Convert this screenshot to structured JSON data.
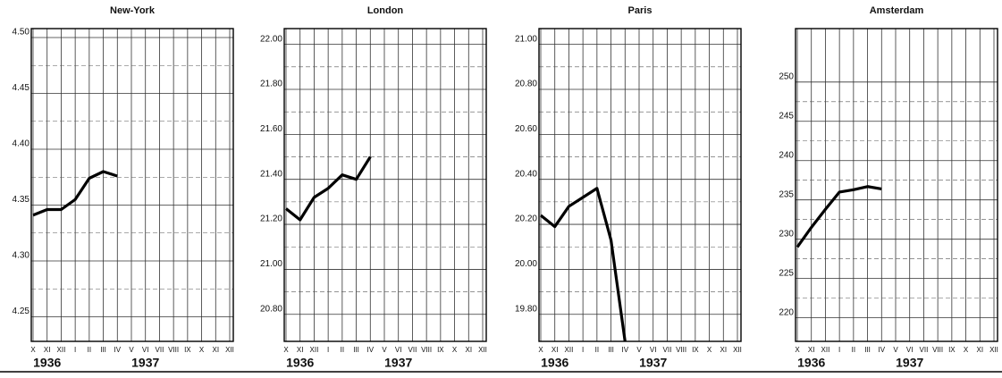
{
  "chart_data": [
    {
      "type": "line",
      "title": "New-York",
      "categories": [
        "X",
        "XI",
        "XII",
        "I",
        "II",
        "III",
        "IV",
        "V",
        "VI",
        "VII",
        "VIII",
        "IX",
        "X",
        "XI",
        "XII"
      ],
      "year_labels": [
        "1936",
        "1937"
      ],
      "series": [
        {
          "color": "#000000",
          "values": [
            4.341,
            4.346,
            4.346,
            4.355,
            4.374,
            4.38,
            4.376,
            null,
            null,
            null,
            null,
            null,
            null,
            null,
            null
          ]
        }
      ],
      "ylim": [
        4.228,
        4.508
      ],
      "yticks": [
        4.25,
        {
          "value": 4.3,
          "label": "4.30"
        },
        4.35,
        {
          "value": 4.4,
          "label": "4.40"
        },
        4.45,
        {
          "value": 4.5,
          "label": "4.50"
        }
      ],
      "grid": true
    },
    {
      "type": "line",
      "title": "London",
      "categories": [
        "X",
        "XI",
        "XII",
        "I",
        "II",
        "III",
        "IV",
        "V",
        "VI",
        "VII",
        "VIII",
        "IX",
        "X",
        "XI",
        "XII"
      ],
      "year_labels": [
        "1936",
        "1937"
      ],
      "series": [
        {
          "color": "#000000",
          "values": [
            21.27,
            21.22,
            21.32,
            21.36,
            21.42,
            21.4,
            21.5,
            null,
            null,
            null,
            null,
            null,
            null,
            null,
            null
          ]
        }
      ],
      "ylim": [
        20.68,
        22.07
      ],
      "yticks": [
        {
          "value": 20.8,
          "label": "20.80"
        },
        {
          "value": 21.0,
          "label": "21.00"
        },
        {
          "value": 21.2,
          "label": "21.20"
        },
        {
          "value": 21.4,
          "label": "21.40"
        },
        {
          "value": 21.6,
          "label": "21.60"
        },
        {
          "value": 21.8,
          "label": "21.80"
        },
        {
          "value": 22.0,
          "label": "22.00"
        }
      ],
      "grid": true
    },
    {
      "type": "line",
      "title": "Paris",
      "categories": [
        "X",
        "XI",
        "XII",
        "I",
        "II",
        "III",
        "IV",
        "V",
        "VI",
        "VII",
        "VIII",
        "IX",
        "X",
        "XI",
        "XII"
      ],
      "year_labels": [
        "1936",
        "1937"
      ],
      "series": [
        {
          "color": "#000000",
          "values": [
            20.24,
            20.19,
            20.28,
            20.32,
            20.36,
            20.13,
            19.68,
            null,
            null,
            null,
            null,
            null,
            null,
            null,
            null
          ]
        }
      ],
      "ylim": [
        19.68,
        21.07
      ],
      "yticks": [
        {
          "value": 19.8,
          "label": "19.80"
        },
        {
          "value": 20.0,
          "label": "20.00"
        },
        {
          "value": 20.2,
          "label": "20.20"
        },
        {
          "value": 20.4,
          "label": "20.40"
        },
        {
          "value": 20.6,
          "label": "20.60"
        },
        {
          "value": 20.8,
          "label": "20.80"
        },
        {
          "value": 21.0,
          "label": "21.00"
        }
      ],
      "grid": true
    },
    {
      "type": "line",
      "title": "Amsterdam",
      "categories": [
        "X",
        "XI",
        "XII",
        "I",
        "II",
        "III",
        "IV",
        "V",
        "VI",
        "VII",
        "VIII",
        "IX",
        "X",
        "XI",
        "XII"
      ],
      "year_labels": [
        "1936",
        "1937"
      ],
      "series": [
        {
          "color": "#000000",
          "values": [
            229.0,
            231.5,
            233.8,
            236.0,
            236.3,
            236.7,
            236.4,
            null,
            null,
            null,
            null,
            null,
            null,
            null,
            null
          ]
        }
      ],
      "ylim": [
        217.0,
        256.8
      ],
      "yticks": [
        220,
        225,
        230,
        235,
        240,
        245,
        250
      ],
      "grid": true
    }
  ]
}
